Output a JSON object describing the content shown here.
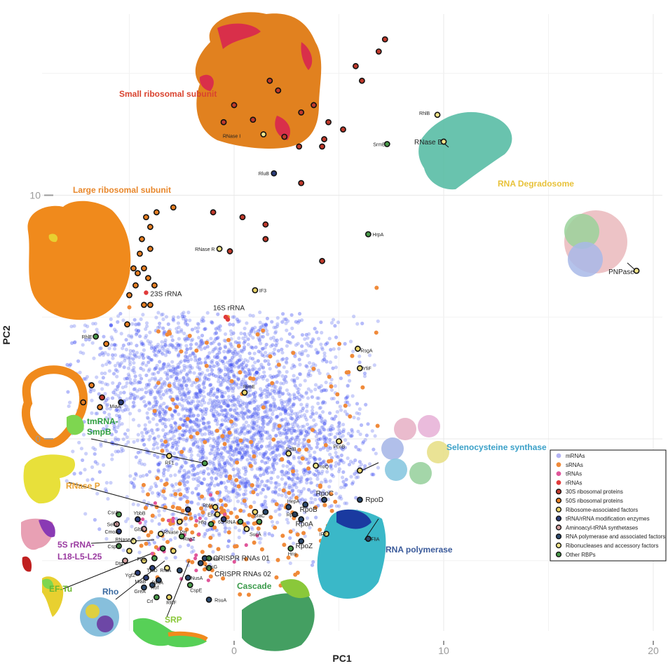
{
  "chart_data": {
    "type": "scatter",
    "xlabel": "PC1",
    "ylabel": "PC2",
    "xlim": [
      -11,
      20.5
    ],
    "ylim": [
      -9.2,
      17.8
    ],
    "xticks": [
      0,
      10,
      20
    ],
    "yticks": [
      0,
      10
    ],
    "grid": true,
    "legend_position": "bottom-right",
    "legend": [
      {
        "name": "mRNAs",
        "color": "#b3b3f2",
        "stroke": "none"
      },
      {
        "name": "sRNAs",
        "color": "#f08a3a",
        "stroke": "none"
      },
      {
        "name": "tRNAs",
        "color": "#e0559a",
        "stroke": "none"
      },
      {
        "name": "rRNAs",
        "color": "#e03a3a",
        "stroke": "none"
      },
      {
        "name": "30S ribosomal proteins",
        "color": "#c0392b",
        "stroke": "#111"
      },
      {
        "name": "50S ribosomal proteins",
        "color": "#e67e22",
        "stroke": "#111"
      },
      {
        "name": "Ribosome-associated factors",
        "color": "#e8d46a",
        "stroke": "#111"
      },
      {
        "name": "tRNA/rRNA modification enzymes",
        "color": "#2c3e7a",
        "stroke": "#111"
      },
      {
        "name": "Aminoacyl-tRNA synthetases",
        "color": "#d4a0a0",
        "stroke": "#111"
      },
      {
        "name": "RNA polymerase and associated factors",
        "color": "#2c4a6e",
        "stroke": "#111"
      },
      {
        "name": "Ribonucleases and accessory factors",
        "color": "#f2e58a",
        "stroke": "#111"
      },
      {
        "name": "Other RBPs",
        "color": "#4a9a4a",
        "stroke": "#111"
      }
    ],
    "complex_labels": [
      {
        "text": "Small ribosomal subunit",
        "color": "#d9432f"
      },
      {
        "text": "Large ribosomal subunit",
        "color": "#e8872b"
      },
      {
        "text": "RNA Degradosome",
        "color": "#e8c23a"
      },
      {
        "text": "tmRNA-",
        "color": "#2e9e3e"
      },
      {
        "text": "SmpB",
        "color": "#2e9e3e"
      },
      {
        "text": "RNase P",
        "color": "#e8a030"
      },
      {
        "text": "Selenocysteine synthase",
        "color": "#3aa0c8"
      },
      {
        "text": "RNA polymerase",
        "color": "#3a5a9a"
      },
      {
        "text": "5S rRNA-",
        "color": "#9a3aa0"
      },
      {
        "text": "L18-L5-L25",
        "color": "#9a3aa0"
      },
      {
        "text": "EF-Tu",
        "color": "#6ab82e"
      },
      {
        "text": "Rho",
        "color": "#3a6aa0"
      },
      {
        "text": "SRP",
        "color": "#8ac83a"
      },
      {
        "text": "Cascade",
        "color": "#3a9a4a"
      }
    ],
    "point_labels": {
      "RNase I": "RNase I",
      "SrmB": "SrmB",
      "RluB": "RluB",
      "RNase E": "RNase E",
      "RhlB": "RhlB",
      "RNase R": "RNase R",
      "HrpA": "HrpA",
      "PNPase": "PNPase",
      "IF3": "IF3",
      "23S rRNA": "23S rRNA",
      "16S rRNA": "16S rRNA",
      "RhlE": "RhlE",
      "RsgA": "RsgA",
      "YfiF": "YfiF",
      "RimE": "RimE",
      "MiaA": "MiaA",
      "PcnB": "PcnB",
      "RF1": "RF1",
      "ProQ": "ProQ",
      "RpoC": "RpoC",
      "RpoD": "RpoD",
      "RpoB": "RpoB",
      "RpoA": "RpoA",
      "RpoZ": "RpoZ",
      "IF2": "IF2",
      "FliA": "FliA",
      "Hns": "Hns",
      "CsrA": "CsrA",
      "YbbB": "YbbB",
      "SelD": "SelD",
      "GltA": "GltA",
      "CmoA": "CmoA",
      "CspD": "CspD",
      "RNase T": "RNase T",
      "RNase PH": "RNase PH",
      "RapZ": "RapZ",
      "Dtd": "Dtd",
      "Fmt": "Fmt",
      "YgfZ": "YgfZ",
      "MiaB": "MiaB",
      "TruD": "TruD",
      "RraA": "RraA",
      "DksA": "DksA",
      "Rof": "Rof",
      "GreA": "GreA",
      "Crl": "Crl",
      "RRF": "RRF",
      "NusA": "NusA",
      "CspE": "CspE",
      "RsuA": "RsuA",
      "GreB": "GreB",
      "NusG": "NusG",
      "RbfA": "RbfA",
      "Eno": "Eno",
      "Hfq": "Hfq",
      "6S RNA": "6S RNA",
      "SraC": "SraC",
      "RpoS": "RpoS",
      "HepA": "HepA",
      "SucA": "SucA",
      "CRISPR RNAs 01": "CRISPR RNAs 01",
      "CRISPR RNAs 02": "CRISPR RNAs 02",
      "SelB": "SelB"
    }
  }
}
